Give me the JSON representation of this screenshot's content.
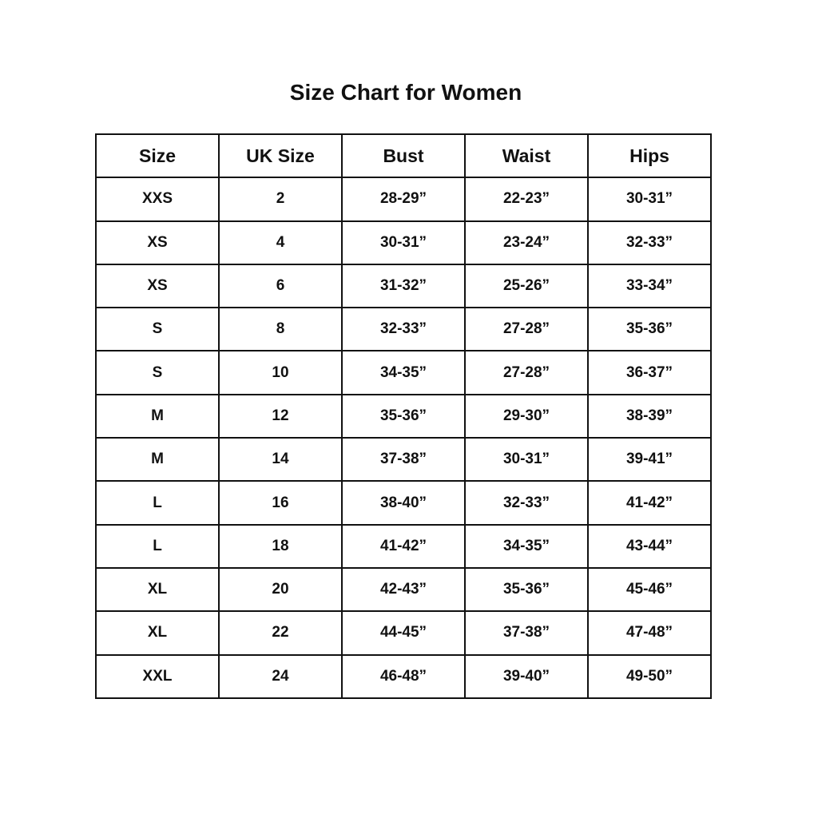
{
  "title": "Size Chart for Women",
  "columns": [
    "Size",
    "UK Size",
    "Bust",
    "Waist",
    "Hips"
  ],
  "rows": [
    [
      "XXS",
      "2",
      "28-29”",
      "22-23”",
      "30-31”"
    ],
    [
      "XS",
      "4",
      "30-31”",
      "23-24”",
      "32-33”"
    ],
    [
      "XS",
      "6",
      "31-32”",
      "25-26”",
      "33-34”"
    ],
    [
      "S",
      "8",
      "32-33”",
      "27-28”",
      "35-36”"
    ],
    [
      "S",
      "10",
      "34-35”",
      "27-28”",
      "36-37”"
    ],
    [
      "M",
      "12",
      "35-36”",
      "29-30”",
      "38-39”"
    ],
    [
      "M",
      "14",
      "37-38”",
      "30-31”",
      "39-41”"
    ],
    [
      "L",
      "16",
      "38-40”",
      "32-33”",
      "41-42”"
    ],
    [
      "L",
      "18",
      "41-42”",
      "34-35”",
      "43-44”"
    ],
    [
      "XL",
      "20",
      "42-43”",
      "35-36”",
      "45-46”"
    ],
    [
      "XL",
      "22",
      "44-45”",
      "37-38”",
      "47-48”"
    ],
    [
      "XXL",
      "24",
      "46-48”",
      "39-40”",
      "49-50”"
    ]
  ]
}
